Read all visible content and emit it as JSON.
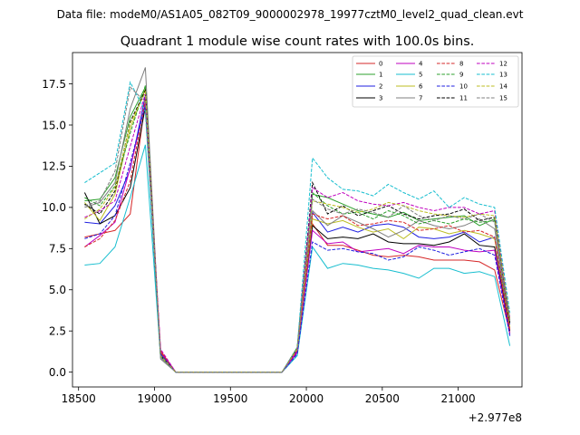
{
  "suptitle": "Data file: modeM0/AS1A05_082T09_9000002978_19977cztM0_level2_quad_clean.evt",
  "chart_data": {
    "type": "line",
    "title": "Quadrant 1 module wise count rates with 100.0s bins.",
    "xlabel": "",
    "ylabel": "",
    "x_offset_label": "+2.977e8",
    "xlim": [
      18460,
      21420
    ],
    "ylim": [
      -0.9,
      19.4
    ],
    "xticks": [
      18500,
      19000,
      19500,
      20000,
      20500,
      21000
    ],
    "yticks": [
      0.0,
      2.5,
      5.0,
      7.5,
      10.0,
      12.5,
      15.0,
      17.5
    ],
    "x": [
      18540,
      18640,
      18740,
      18840,
      18940,
      19040,
      19140,
      19240,
      19340,
      19440,
      19540,
      19640,
      19740,
      19840,
      19940,
      20040,
      20140,
      20240,
      20340,
      20440,
      20540,
      20640,
      20740,
      20840,
      20940,
      21040,
      21140,
      21240,
      21340
    ],
    "legend_location": "upper right",
    "series": [
      {
        "name": "0",
        "color": "#d62728",
        "dash": "solid",
        "values": [
          8.2,
          8.4,
          8.6,
          9.6,
          16.5,
          1.3,
          0.0,
          0.0,
          0.0,
          0.0,
          0.0,
          0.0,
          0.0,
          0.0,
          1.2,
          9.0,
          7.7,
          7.7,
          7.4,
          7.1,
          7.0,
          7.1,
          7.0,
          6.8,
          6.8,
          6.8,
          6.7,
          6.2,
          2.4
        ]
      },
      {
        "name": "1",
        "color": "#2ca02c",
        "dash": "solid",
        "values": [
          10.4,
          10.5,
          11.8,
          15.5,
          17.3,
          1.0,
          0.0,
          0.0,
          0.0,
          0.0,
          0.0,
          0.0,
          0.0,
          0.0,
          1.5,
          10.8,
          10.6,
          10.2,
          9.8,
          9.6,
          9.4,
          9.7,
          9.2,
          9.3,
          9.4,
          9.5,
          8.9,
          9.3,
          3.2
        ]
      },
      {
        "name": "2",
        "color": "#1f1fe0",
        "dash": "solid",
        "values": [
          9.1,
          9.0,
          10.1,
          12.3,
          16.8,
          1.1,
          0.0,
          0.0,
          0.0,
          0.0,
          0.0,
          0.0,
          0.0,
          0.0,
          1.3,
          9.7,
          8.5,
          8.8,
          8.5,
          8.9,
          9.0,
          8.8,
          8.2,
          8.1,
          8.2,
          8.5,
          7.9,
          8.2,
          2.9
        ]
      },
      {
        "name": "3",
        "color": "#000000",
        "dash": "solid",
        "values": [
          10.9,
          9.0,
          9.5,
          11.2,
          16.1,
          0.9,
          0.0,
          0.0,
          0.0,
          0.0,
          0.0,
          0.0,
          0.0,
          0.0,
          1.2,
          8.9,
          8.1,
          8.2,
          8.1,
          8.4,
          7.9,
          7.8,
          7.8,
          7.7,
          7.9,
          8.4,
          7.7,
          7.6,
          2.5
        ]
      },
      {
        "name": "4",
        "color": "#bf00bf",
        "dash": "solid",
        "values": [
          7.6,
          8.3,
          9.1,
          12.4,
          16.3,
          1.2,
          0.0,
          0.0,
          0.0,
          0.0,
          0.0,
          0.0,
          0.0,
          0.0,
          1.2,
          8.6,
          7.8,
          7.9,
          7.3,
          7.4,
          7.5,
          7.2,
          7.7,
          7.6,
          7.6,
          7.4,
          7.3,
          7.4,
          2.3
        ]
      },
      {
        "name": "5",
        "color": "#17becf",
        "dash": "solid",
        "values": [
          6.5,
          6.6,
          7.6,
          10.6,
          13.8,
          0.9,
          0.0,
          0.0,
          0.0,
          0.0,
          0.0,
          0.0,
          0.0,
          0.0,
          1.0,
          7.6,
          6.3,
          6.6,
          6.5,
          6.3,
          6.2,
          6.0,
          5.7,
          6.3,
          6.3,
          6.0,
          6.1,
          5.8,
          1.6
        ]
      },
      {
        "name": "6",
        "color": "#bcbd22",
        "dash": "solid",
        "values": [
          10.3,
          9.2,
          10.8,
          14.8,
          17.2,
          0.9,
          0.0,
          0.0,
          0.0,
          0.0,
          0.0,
          0.0,
          0.0,
          0.0,
          1.4,
          9.3,
          9.0,
          9.2,
          8.8,
          8.5,
          8.7,
          8.1,
          8.8,
          8.7,
          8.4,
          8.6,
          8.4,
          8.1,
          2.7
        ]
      },
      {
        "name": "7",
        "color": "#7f7f7f",
        "dash": "solid",
        "values": [
          10.0,
          10.3,
          11.5,
          16.0,
          18.5,
          0.8,
          0.0,
          0.0,
          0.0,
          0.0,
          0.0,
          0.0,
          0.0,
          0.0,
          1.4,
          9.8,
          8.9,
          9.5,
          9.1,
          8.7,
          8.2,
          8.6,
          9.2,
          8.9,
          8.7,
          8.9,
          9.3,
          8.7,
          3.0
        ]
      },
      {
        "name": "8",
        "color": "#d62728",
        "dash": "dashed",
        "values": [
          7.6,
          8.1,
          9.2,
          11.6,
          16.6,
          1.2,
          0.0,
          0.0,
          0.0,
          0.0,
          0.0,
          0.0,
          0.0,
          0.0,
          1.3,
          9.6,
          9.3,
          9.5,
          8.9,
          9.0,
          9.2,
          9.1,
          8.6,
          8.7,
          8.9,
          8.5,
          8.6,
          8.2,
          2.6
        ]
      },
      {
        "name": "9",
        "color": "#2ca02c",
        "dash": "dashed",
        "values": [
          10.6,
          10.1,
          11.3,
          14.5,
          17.4,
          1.0,
          0.0,
          0.0,
          0.0,
          0.0,
          0.0,
          0.0,
          0.0,
          0.0,
          1.5,
          10.9,
          10.1,
          9.6,
          9.7,
          9.3,
          9.8,
          9.5,
          9.0,
          9.2,
          9.0,
          9.3,
          9.1,
          9.2,
          3.1
        ]
      },
      {
        "name": "10",
        "color": "#1f1fe0",
        "dash": "dashed",
        "values": [
          8.1,
          8.4,
          9.5,
          12.7,
          16.2,
          1.1,
          0.0,
          0.0,
          0.0,
          0.0,
          0.0,
          0.0,
          0.0,
          0.0,
          1.1,
          7.9,
          7.4,
          7.5,
          7.3,
          7.2,
          6.8,
          7.0,
          7.6,
          7.4,
          7.1,
          7.3,
          7.5,
          7.1,
          2.2
        ]
      },
      {
        "name": "11",
        "color": "#000000",
        "dash": "dashed",
        "values": [
          10.2,
          9.6,
          11.0,
          15.2,
          17.1,
          1.0,
          0.0,
          0.0,
          0.0,
          0.0,
          0.0,
          0.0,
          0.0,
          0.0,
          1.4,
          11.5,
          9.6,
          10.1,
          9.5,
          9.8,
          10.1,
          9.6,
          9.3,
          9.5,
          9.6,
          9.9,
          9.2,
          9.4,
          3.0
        ]
      },
      {
        "name": "12",
        "color": "#bf00bf",
        "dash": "dashed",
        "values": [
          9.4,
          9.8,
          10.4,
          13.7,
          16.9,
          1.4,
          0.0,
          0.0,
          0.0,
          0.0,
          0.0,
          0.0,
          0.0,
          0.0,
          1.3,
          11.2,
          10.6,
          10.9,
          10.4,
          10.2,
          10.1,
          10.3,
          10.0,
          9.8,
          10.0,
          10.0,
          9.6,
          9.8,
          3.3
        ]
      },
      {
        "name": "13",
        "color": "#17becf",
        "dash": "dashed",
        "values": [
          11.5,
          12.1,
          12.7,
          17.6,
          15.8,
          0.9,
          0.0,
          0.0,
          0.0,
          0.0,
          0.0,
          0.0,
          0.0,
          0.0,
          1.5,
          13.0,
          11.8,
          11.1,
          11.0,
          10.7,
          11.4,
          10.9,
          10.5,
          11.0,
          10.0,
          10.6,
          10.2,
          10.0,
          3.6
        ]
      },
      {
        "name": "14",
        "color": "#bcbd22",
        "dash": "dashed",
        "values": [
          9.3,
          9.9,
          11.2,
          15.1,
          17.0,
          1.0,
          0.0,
          0.0,
          0.0,
          0.0,
          0.0,
          0.0,
          0.0,
          0.0,
          1.4,
          10.4,
          10.2,
          10.0,
          9.7,
          9.9,
          10.3,
          10.1,
          9.8,
          9.6,
          9.5,
          9.4,
          9.6,
          9.5,
          3.2
        ]
      },
      {
        "name": "15",
        "color": "#7f7f7f",
        "dash": "dashed",
        "values": [
          10.1,
          10.4,
          12.2,
          17.3,
          16.4,
          0.9,
          0.0,
          0.0,
          0.0,
          0.0,
          0.0,
          0.0,
          0.0,
          0.0,
          1.5,
          10.5,
          9.9,
          9.6,
          9.9,
          9.7,
          9.4,
          10.1,
          9.5,
          9.2,
          9.5,
          9.3,
          9.6,
          9.1,
          3.1
        ]
      }
    ]
  }
}
